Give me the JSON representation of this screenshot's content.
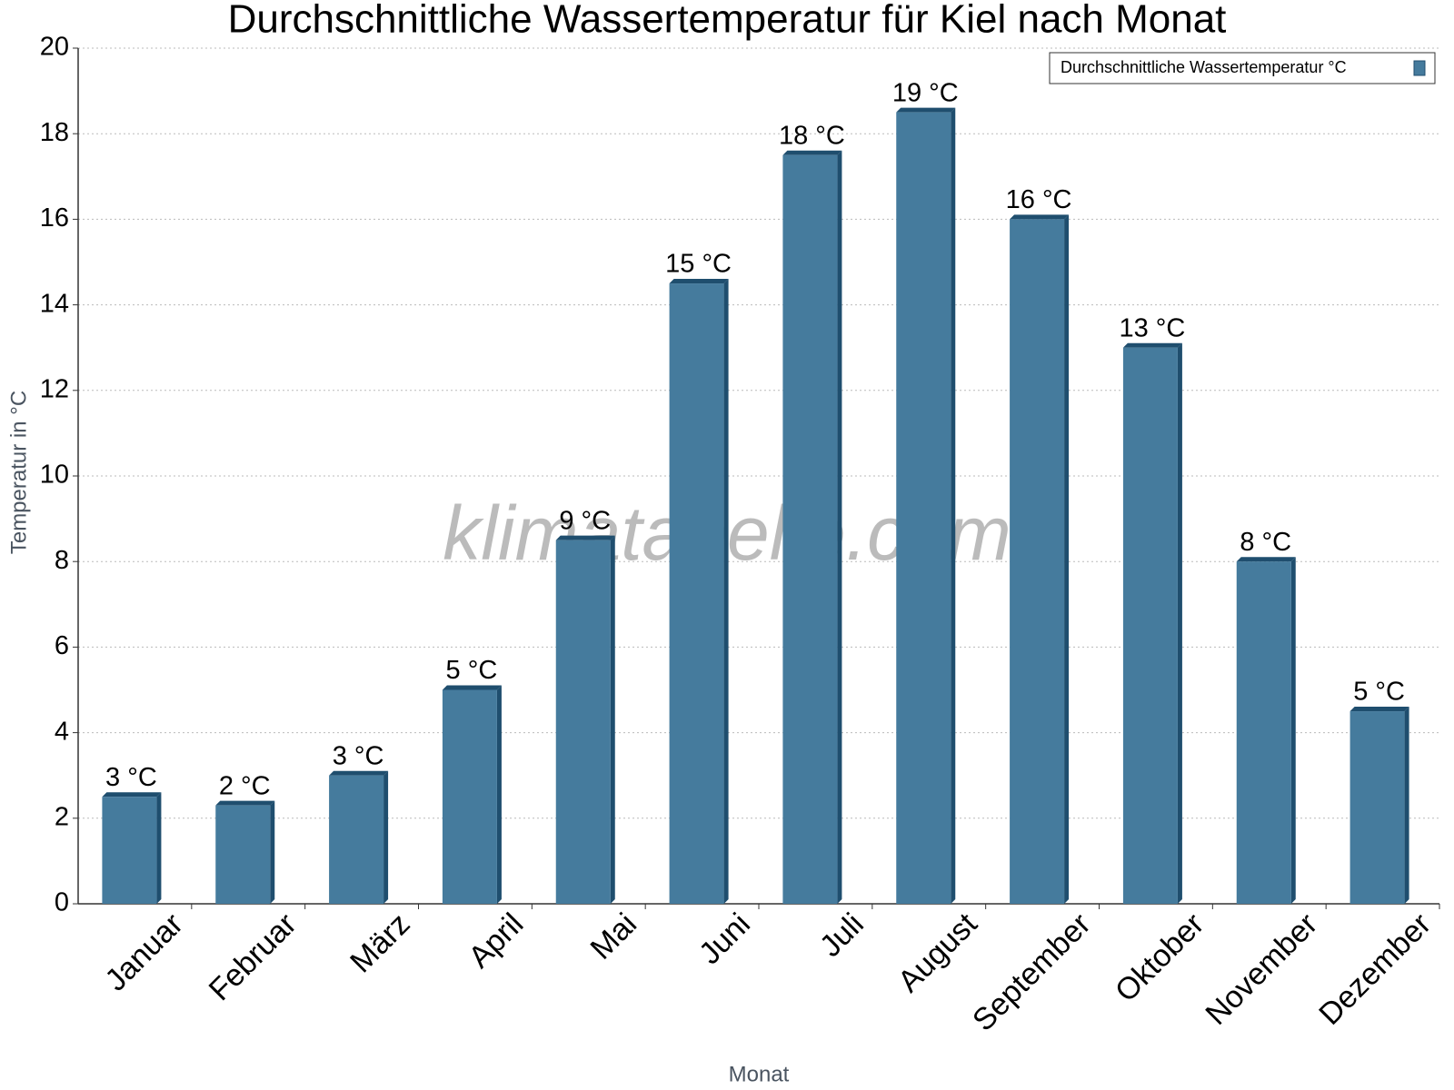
{
  "chart_data": {
    "type": "bar",
    "title": "Durchschnittliche Wassertemperatur für Kiel nach Monat",
    "x_label": "Monat",
    "y_label": "Temperatur in °C",
    "watermark": "klimatabelle.com",
    "categories": [
      "Januar",
      "Februar",
      "März",
      "April",
      "Mai",
      "Juni",
      "Juli",
      "August",
      "September",
      "Oktober",
      "November",
      "Dezember"
    ],
    "series": [
      {
        "name": "Durchschnittliche Wassertemperatur °C",
        "color": "#457b9d",
        "values": [
          2.5,
          2.3,
          3.0,
          5.0,
          8.5,
          14.5,
          17.5,
          18.5,
          16.0,
          13.0,
          8.0,
          4.5
        ],
        "value_labels": [
          "3 °C",
          "2 °C",
          "3 °C",
          "5 °C",
          "9 °C",
          "15 °C",
          "18 °C",
          "19 °C",
          "16 °C",
          "13 °C",
          "8 °C",
          "5 °C"
        ]
      }
    ],
    "ylim": [
      0,
      20
    ],
    "yticks": [
      0,
      2,
      4,
      6,
      8,
      10,
      12,
      14,
      16,
      18,
      20
    ],
    "grid": true,
    "legend": "top-right"
  }
}
